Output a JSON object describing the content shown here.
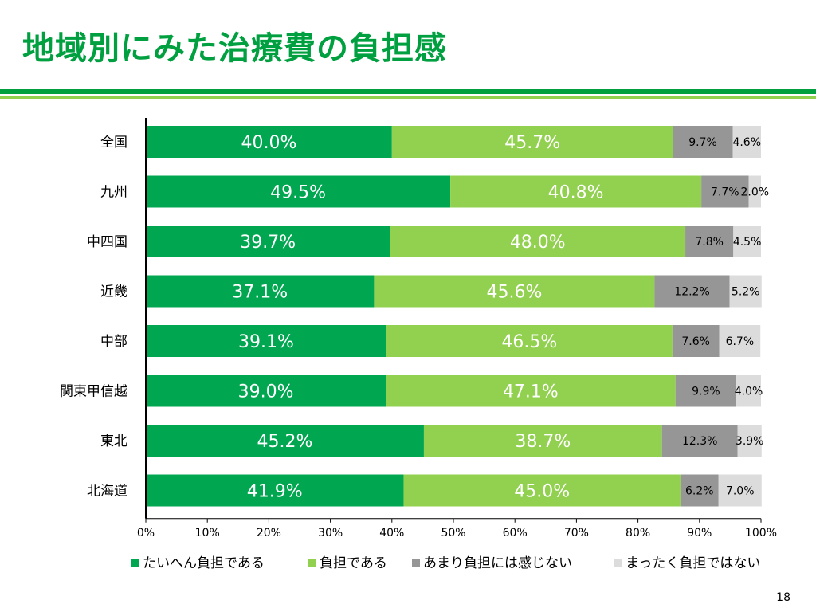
{
  "title": "地域別にみた治療費の負担感",
  "page_number": "18",
  "chart_data": {
    "type": "bar",
    "orientation": "horizontal",
    "stacked": true,
    "percent": true,
    "title": "",
    "xlabel": "",
    "ylabel": "",
    "xlim": [
      0,
      100
    ],
    "categories": [
      "全国",
      "九州",
      "中四国",
      "近畿",
      "中部",
      "関東甲信越",
      "東北",
      "北海道"
    ],
    "x_ticks": [
      "0%",
      "10%",
      "20%",
      "30%",
      "40%",
      "50%",
      "60%",
      "70%",
      "80%",
      "90%",
      "100%"
    ],
    "grid": false,
    "legend_position": "bottom",
    "series": [
      {
        "name": "たいへん負担である",
        "color": "#00a650",
        "values": [
          40.0,
          49.5,
          39.7,
          37.1,
          39.1,
          39.0,
          45.2,
          41.9
        ],
        "labels": [
          "40.0%",
          "49.5%",
          "39.7%",
          "37.1%",
          "39.1%",
          "39.0%",
          "45.2%",
          "41.9%"
        ]
      },
      {
        "name": "負担である",
        "color": "#92d050",
        "values": [
          45.7,
          40.8,
          48.0,
          45.6,
          46.5,
          47.1,
          38.7,
          45.0
        ],
        "labels": [
          "45.7%",
          "40.8%",
          "48.0%",
          "45.6%",
          "46.5%",
          "47.1%",
          "38.7%",
          "45.0%"
        ]
      },
      {
        "name": "あまり負担には感じない",
        "color": "#969696",
        "values": [
          9.7,
          7.7,
          7.8,
          12.2,
          7.6,
          9.9,
          12.3,
          6.2
        ],
        "labels": [
          "9.7%",
          "7.7%",
          "7.8%",
          "12.2%",
          "7.6%",
          "9.9%",
          "12.3%",
          "6.2%"
        ]
      },
      {
        "name": "まったく負担ではない",
        "color": "#dcdcdc",
        "values": [
          4.6,
          2.0,
          4.5,
          5.2,
          6.7,
          4.0,
          3.9,
          7.0
        ],
        "labels": [
          "4.6%",
          "2.0%",
          "4.5%",
          "5.2%",
          "6.7%",
          "4.0%",
          "3.9%",
          "7.0%"
        ]
      }
    ]
  }
}
